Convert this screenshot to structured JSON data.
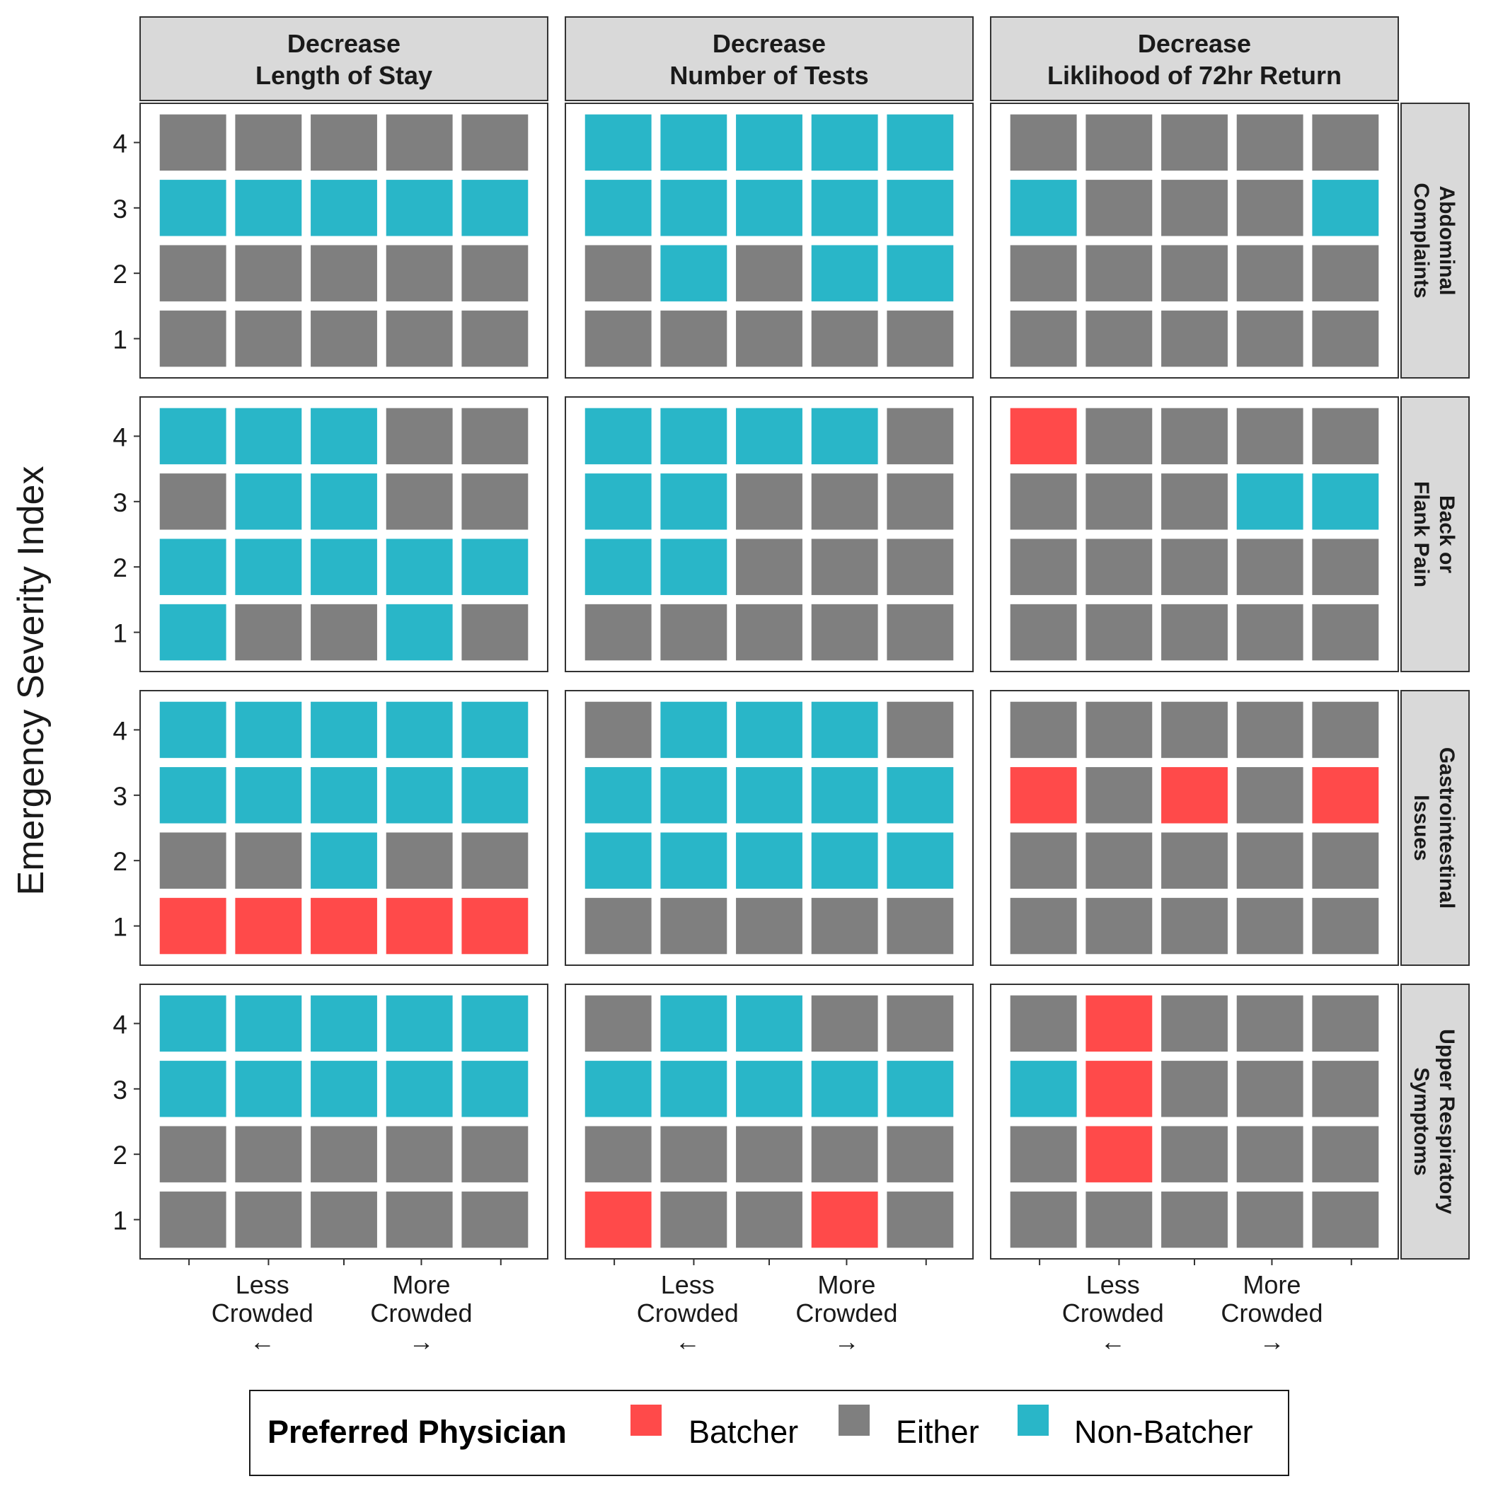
{
  "chart_data": {
    "type": "heatmap",
    "ylabel": "Emergency Severity Index",
    "y_ticks": [
      "1",
      "2",
      "3",
      "4"
    ],
    "x_tick_labels": [
      {
        "lines": [
          "Less",
          "Crowded",
          "←"
        ]
      },
      {
        "lines": [
          "More",
          "Crowded",
          "→"
        ]
      }
    ],
    "columns": [
      {
        "title_lines": [
          "Decrease",
          "Length of Stay"
        ]
      },
      {
        "title_lines": [
          "Decrease",
          "Number of Tests"
        ]
      },
      {
        "title_lines": [
          "Decrease",
          "Liklihood of 72hr Return"
        ]
      }
    ],
    "rows": [
      {
        "label_lines": [
          "Abdominal",
          "Complaints"
        ]
      },
      {
        "label_lines": [
          "Back or",
          "Flank Pain"
        ]
      },
      {
        "label_lines": [
          "Gastrointestinal",
          "Issues"
        ]
      },
      {
        "label_lines": [
          "Upper Respiratory",
          "Symptoms"
        ]
      }
    ],
    "legend": {
      "title": "Preferred Physician",
      "placement": "bottom",
      "items": [
        {
          "key": "B",
          "label": "Batcher",
          "color": "#FF4A4A"
        },
        {
          "key": "E",
          "label": "Either",
          "color": "#7F7F7F"
        },
        {
          "key": "N",
          "label": "Non-Batcher",
          "color": "#29B6C8"
        }
      ]
    },
    "cell_grid_note_esi_order": "top-to-bottom ESI 4,3,2,1; left-to-right crowding level 1-5",
    "panels": [
      [
        [
          "EEEEE",
          "NNNNN",
          "EEEEE",
          "EEEEE"
        ],
        [
          "NNNNN",
          "NNNNN",
          "ENENN",
          "EEEEE"
        ],
        [
          "EEEEE",
          "NEEEN",
          "EEEEE",
          "EEEEE"
        ]
      ],
      [
        [
          "NNNEE",
          "ENNEE",
          "NNNNN",
          "NEENE"
        ],
        [
          "NNNNE",
          "NNEEE",
          "NNEEE",
          "EEEEE"
        ],
        [
          "BEEEE",
          "EEENN",
          "EEEEE",
          "EEEEE"
        ]
      ],
      [
        [
          "NNNNN",
          "NNNNN",
          "EENEE",
          "BBBBB"
        ],
        [
          "ENNNE",
          "NNNNN",
          "NNNNN",
          "EEEEE"
        ],
        [
          "EEEEE",
          "BEBEB",
          "EEEEE",
          "EEEEE"
        ]
      ],
      [
        [
          "NNNNN",
          "NNNNN",
          "EEEEE",
          "EEEEE"
        ],
        [
          "ENNEE",
          "NNNNN",
          "EEEEE",
          "BEEBE"
        ],
        [
          "EBEEE",
          "NBEEE",
          "EBEEE",
          "EEEEE"
        ]
      ]
    ]
  }
}
